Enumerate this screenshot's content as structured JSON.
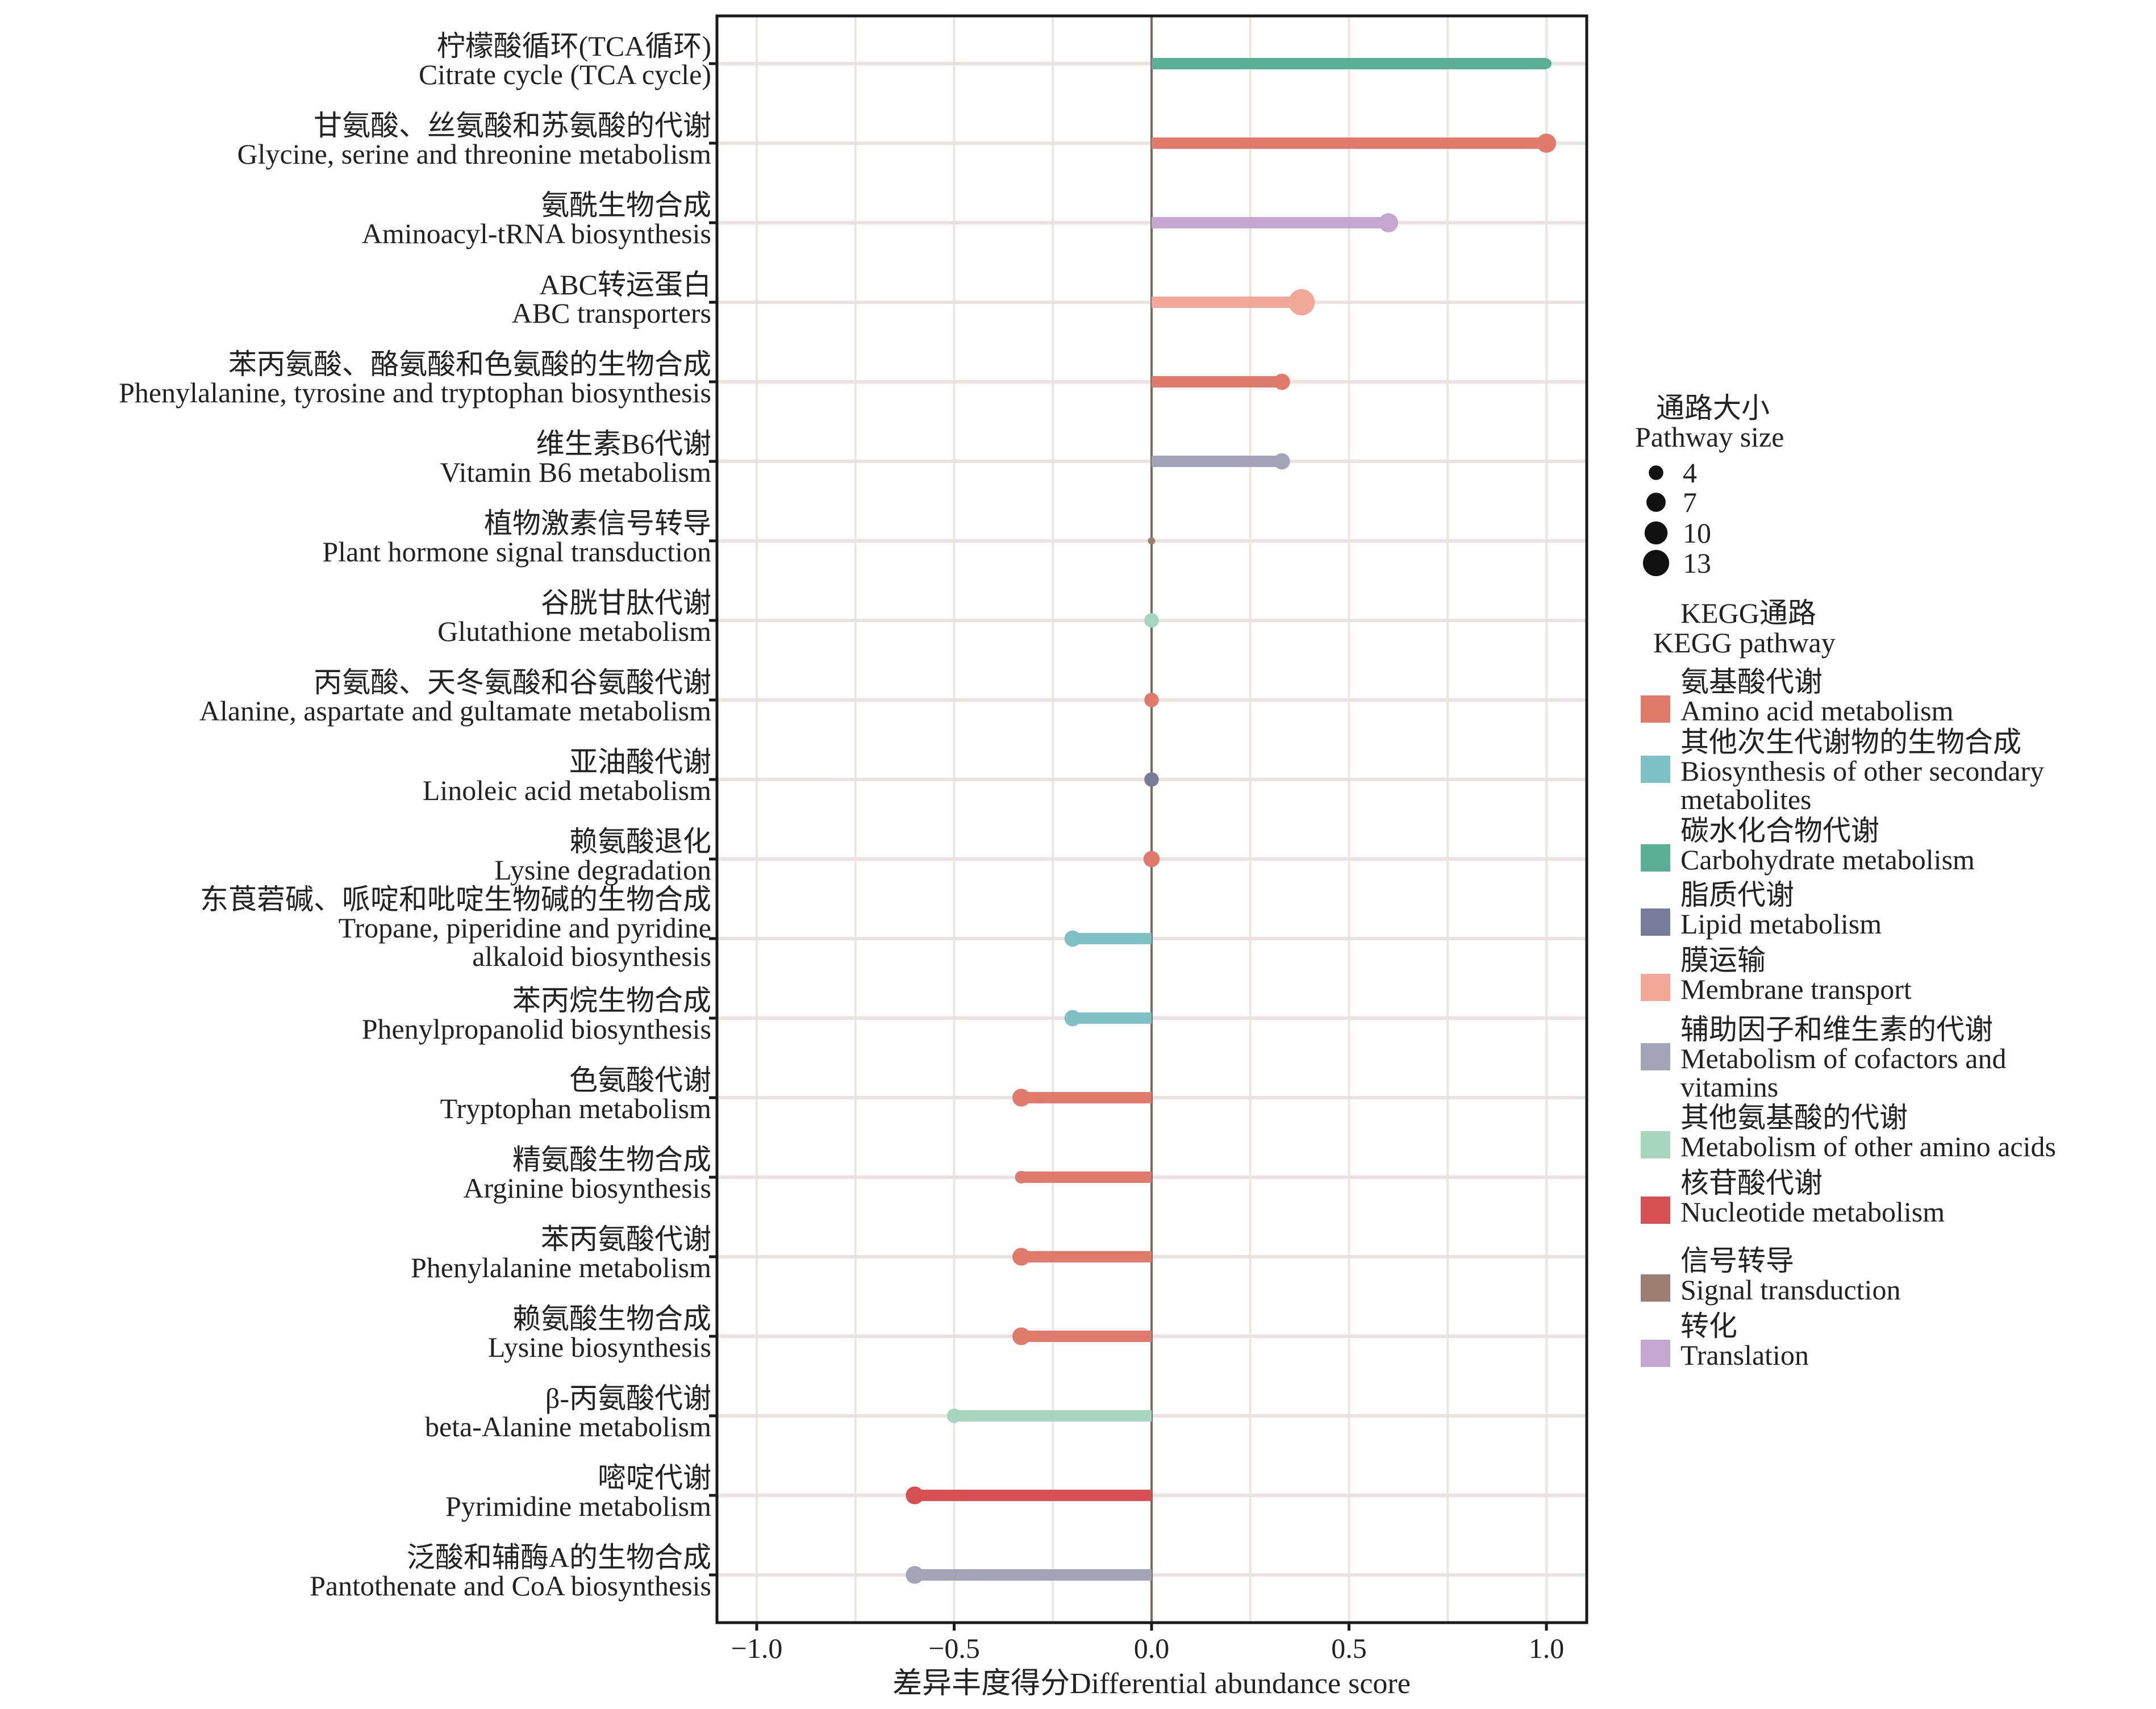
{
  "chart_data": {
    "type": "lollipop",
    "xlabel": "差异丰度得分Differential abundance score",
    "xlim": [
      -1.1,
      1.1
    ],
    "xticks": [
      -1.0,
      -0.5,
      0.0,
      0.5,
      1.0
    ],
    "xtick_labels": [
      "−1.0",
      "−0.5",
      "0.0",
      "0.5",
      "1.0"
    ],
    "grid": true,
    "legend_placement": "right",
    "rows": [
      {
        "zh": "柠檬酸循环(TCA循环)",
        "en": [
          "Citrate cycle (TCA cycle)"
        ],
        "value": 1.0,
        "size": 2,
        "category": "Carbohydrate metabolism"
      },
      {
        "zh": "甘氨酸、丝氨酸和苏氨酸的代谢",
        "en": [
          "Glycine, serine and threonine metabolism"
        ],
        "value": 1.0,
        "size": 7,
        "category": "Amino acid metabolism"
      },
      {
        "zh": "氨酰生物合成",
        "en": [
          "Aminoacyl-tRNA biosynthesis"
        ],
        "value": 0.6,
        "size": 7,
        "category": "Translation"
      },
      {
        "zh": "ABC转运蛋白",
        "en": [
          "ABC transporters"
        ],
        "value": 0.38,
        "size": 13,
        "category": "Membrane transport"
      },
      {
        "zh": "苯丙氨酸、酪氨酸和色氨酸的生物合成",
        "en": [
          "Phenylalanine, tyrosine and tryptophan biosynthesis"
        ],
        "value": 0.33,
        "size": 5,
        "category": "Amino acid metabolism"
      },
      {
        "zh": "维生素B6代谢",
        "en": [
          "Vitamin B6 metabolism"
        ],
        "value": 0.33,
        "size": 5,
        "category": "Metabolism of cofactors and vitamins"
      },
      {
        "zh": "植物激素信号转导",
        "en": [
          "Plant hormone signal transduction"
        ],
        "value": 0.0,
        "size": 1,
        "category": "Signal transduction"
      },
      {
        "zh": "谷胱甘肽代谢",
        "en": [
          "Glutathione metabolism"
        ],
        "value": 0.0,
        "size": 4,
        "category": "Metabolism of other amino acids"
      },
      {
        "zh": "丙氨酸、天冬氨酸和谷氨酸代谢",
        "en": [
          "Alanine, aspartate and gultamate metabolism"
        ],
        "value": 0.0,
        "size": 4,
        "category": "Amino acid metabolism"
      },
      {
        "zh": "亚油酸代谢",
        "en": [
          "Linoleic acid metabolism"
        ],
        "value": 0.0,
        "size": 4,
        "category": "Lipid metabolism"
      },
      {
        "zh": "赖氨酸退化",
        "en": [
          "Lysine degradation"
        ],
        "value": 0.0,
        "size": 5,
        "category": "Amino acid metabolism"
      },
      {
        "zh": "东莨菪碱、哌啶和吡啶生物碱的生物合成",
        "en": [
          "Tropane, piperidine and pyridine",
          "alkaloid biosynthesis"
        ],
        "value": -0.2,
        "size": 5,
        "category": "Biosynthesis of other secondary metabolites"
      },
      {
        "zh": "苯丙烷生物合成",
        "en": [
          "Phenylpropanolid biosynthesis"
        ],
        "value": -0.2,
        "size": 5,
        "category": "Biosynthesis of other secondary metabolites"
      },
      {
        "zh": "色氨酸代谢",
        "en": [
          "Tryptophan metabolism"
        ],
        "value": -0.33,
        "size": 6,
        "category": "Amino acid metabolism"
      },
      {
        "zh": "精氨酸生物合成",
        "en": [
          "Arginine biosynthesis"
        ],
        "value": -0.33,
        "size": 3,
        "category": "Amino acid metabolism"
      },
      {
        "zh": "苯丙氨酸代谢",
        "en": [
          "Phenylalanine metabolism"
        ],
        "value": -0.33,
        "size": 6,
        "category": "Amino acid metabolism"
      },
      {
        "zh": "赖氨酸生物合成",
        "en": [
          "Lysine biosynthesis"
        ],
        "value": -0.33,
        "size": 6,
        "category": "Amino acid metabolism"
      },
      {
        "zh": "β-丙氨酸代谢",
        "en": [
          "beta-Alanine metabolism"
        ],
        "value": -0.5,
        "size": 4,
        "category": "Metabolism of other amino acids"
      },
      {
        "zh": "嘧啶代谢",
        "en": [
          "Pyrimidine metabolism"
        ],
        "value": -0.6,
        "size": 6,
        "category": "Nucleotide metabolism"
      },
      {
        "zh": "泛酸和辅酶A的生物合成",
        "en": [
          "Pantothenate and CoA biosynthesis"
        ],
        "value": -0.6,
        "size": 6,
        "category": "Metabolism of cofactors and vitamins"
      }
    ],
    "size_legend": {
      "title": [
        "通路大小",
        "Pathway size"
      ],
      "values": [
        4,
        7,
        10,
        13
      ],
      "labels": [
        "4",
        "7",
        "10",
        "13"
      ]
    },
    "color_legend": {
      "title": [
        "KEGG通路",
        "KEGG pathway"
      ],
      "items": [
        {
          "zh": "氨基酸代谢",
          "en": [
            "Amino acid metabolism"
          ],
          "key": "Amino acid metabolism",
          "color": "#E07A6B"
        },
        {
          "zh": "其他次生代谢物的生物合成",
          "en": [
            "Biosynthesis of other secondary",
            "metabolites"
          ],
          "key": "Biosynthesis of other secondary metabolites",
          "color": "#7FC0C4"
        },
        {
          "zh": "碳水化合物代谢",
          "en": [
            "Carbohydrate metabolism"
          ],
          "key": "Carbohydrate metabolism",
          "color": "#5BAE93"
        },
        {
          "zh": "脂质代谢",
          "en": [
            "Lipid metabolism"
          ],
          "key": "Lipid metabolism",
          "color": "#787B99"
        },
        {
          "zh": "膜运输",
          "en": [
            "Membrane transport"
          ],
          "key": "Membrane transport",
          "color": "#F2A898"
        },
        {
          "zh": "辅助因子和维生素的代谢",
          "en": [
            "Metabolism of cofactors and",
            "vitamins"
          ],
          "key": "Metabolism of cofactors and vitamins",
          "color": "#A3A3B8"
        },
        {
          "zh": "其他氨基酸的代谢",
          "en": [
            "Metabolism of other amino acids"
          ],
          "key": "Metabolism of other amino acids",
          "color": "#A8D5C0"
        },
        {
          "zh": "核苷酸代谢",
          "en": [
            "Nucleotide metabolism"
          ],
          "key": "Nucleotide metabolism",
          "color": "#D64F52"
        },
        {
          "zh": "信号转导",
          "en": [
            "Signal transduction"
          ],
          "key": "Signal transduction",
          "color": "#9B7F72"
        },
        {
          "zh": "转化",
          "en": [
            "Translation"
          ],
          "key": "Translation",
          "color": "#C3A7D0"
        }
      ]
    }
  }
}
